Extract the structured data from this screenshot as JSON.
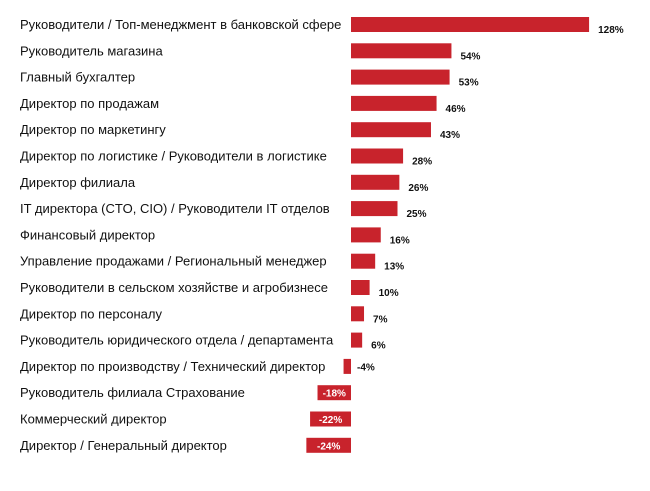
{
  "chart_data": {
    "type": "bar",
    "orientation": "horizontal",
    "bar_color": "#c8232c",
    "negative_label_color": "#ffffff",
    "categories": [
      "Руководители / Топ-менеджмент в банковской сфере",
      "Руководитель магазина",
      "Главный бухгалтер",
      "Директор по продажам",
      "Директор по маркетингу",
      "Директор по логистике / Руководители в логистике",
      "Директор филиала",
      "IT директора (CTO, CIO) / Руководители IT отделов",
      "Финансовый директор",
      "Управление продажами / Региональный менеджер",
      "Руководители в сельском хозяйстве и агробизнесе",
      "Директор по персоналу",
      "Руководитель юридического отдела / департамента",
      "Директор по производству / Технический директор",
      "Руководитель филиала Страхование",
      "Коммерческий директор",
      "Директор / Генеральный директор"
    ],
    "values": [
      128,
      54,
      53,
      46,
      43,
      28,
      26,
      25,
      16,
      13,
      10,
      7,
      6,
      -4,
      -18,
      -22,
      -24
    ],
    "value_labels": [
      "128%",
      "54%",
      "53%",
      "46%",
      "43%",
      "28%",
      "26%",
      "25%",
      "16%",
      "13%",
      "10%",
      "7%",
      "6%",
      "-4%",
      "-18%",
      "-22%",
      "-24%"
    ],
    "unit": "%",
    "title": "",
    "xlabel": "",
    "ylabel": "",
    "grid": false,
    "legend": "none"
  }
}
